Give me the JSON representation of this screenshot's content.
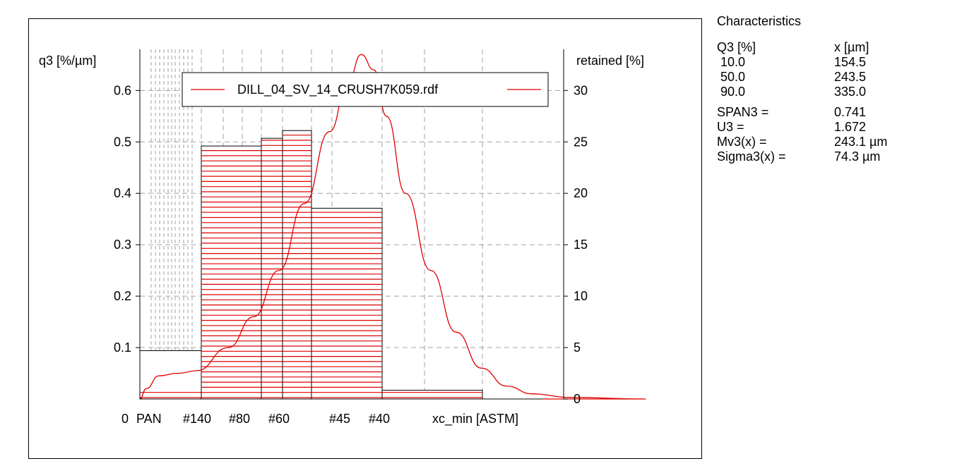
{
  "chart_data": {
    "type": "bar",
    "title": "",
    "ylabel_left": "q3 [%/µm]",
    "ylabel_right": "retained [%]",
    "xlabel": "xc_min [ASTM]",
    "left_ticks": [
      "0.1",
      "0.2",
      "0.3",
      "0.4",
      "0.5",
      "0.6"
    ],
    "left_tick_values": [
      0.1,
      0.2,
      0.3,
      0.4,
      0.5,
      0.6
    ],
    "right_ticks": [
      "0",
      "5",
      "10",
      "15",
      "20",
      "25",
      "30"
    ],
    "right_tick_values": [
      0,
      5,
      10,
      15,
      20,
      25,
      30
    ],
    "xticks": [
      "0",
      "PAN",
      "#140",
      "#80",
      "#60",
      "#45",
      "#40"
    ],
    "left_ylim": [
      0,
      0.68
    ],
    "right_ylim": [
      0,
      34
    ],
    "legend": "DILL_04_SV_14_CRUSH7K059.rdf",
    "legend_position": "top",
    "grid": true,
    "bins": [
      {
        "from": "PAN",
        "to": "#140",
        "q3": 0.094
      },
      {
        "from": "#140",
        "to": "#80",
        "q3": 0.492
      },
      {
        "from": "#80",
        "to": "#60a",
        "q3": 0.507
      },
      {
        "from": "#60a",
        "to": "#60b",
        "q3": 0.522
      },
      {
        "from": "#60b",
        "to": "#40",
        "q3": 0.371
      },
      {
        "from": "#40",
        "to": "end",
        "q3": 0.017
      }
    ],
    "retained_percent": [
      0.9,
      24.6,
      25.4,
      26.1,
      18.5,
      0.9
    ],
    "curve_q3": [
      [
        0,
        0
      ],
      [
        0.05,
        0.02
      ],
      [
        0.15,
        0.045
      ],
      [
        0.3,
        0.05
      ],
      [
        0.45,
        0.055
      ],
      [
        0.7,
        0.1
      ],
      [
        0.9,
        0.16
      ],
      [
        1.1,
        0.25
      ],
      [
        1.3,
        0.38
      ],
      [
        1.5,
        0.52
      ],
      [
        1.65,
        0.62
      ],
      [
        1.75,
        0.67
      ],
      [
        1.85,
        0.64
      ],
      [
        1.95,
        0.55
      ],
      [
        2.1,
        0.4
      ],
      [
        2.3,
        0.25
      ],
      [
        2.5,
        0.13
      ],
      [
        2.7,
        0.06
      ],
      [
        2.9,
        0.025
      ],
      [
        3.1,
        0.01
      ],
      [
        3.4,
        0.003
      ],
      [
        4.0,
        0.0
      ]
    ],
    "series_color": "#e00000"
  },
  "characteristics": {
    "title": "Characteristics",
    "header_q": "Q3 [%]",
    "header_x": "x [µm]",
    "rows": [
      {
        "q": " 10.0",
        "x": "154.5"
      },
      {
        "q": " 50.0",
        "x": "243.5"
      },
      {
        "q": " 90.0",
        "x": "335.0"
      }
    ],
    "stats": [
      {
        "name": "SPAN3 =",
        "value": "0.741"
      },
      {
        "name": "U3 =",
        "value": "1.672"
      },
      {
        "name": "Mv3(x) =",
        "value": "243.1 µm"
      },
      {
        "name": "Sigma3(x) =",
        "value": "74.3 µm"
      }
    ]
  }
}
